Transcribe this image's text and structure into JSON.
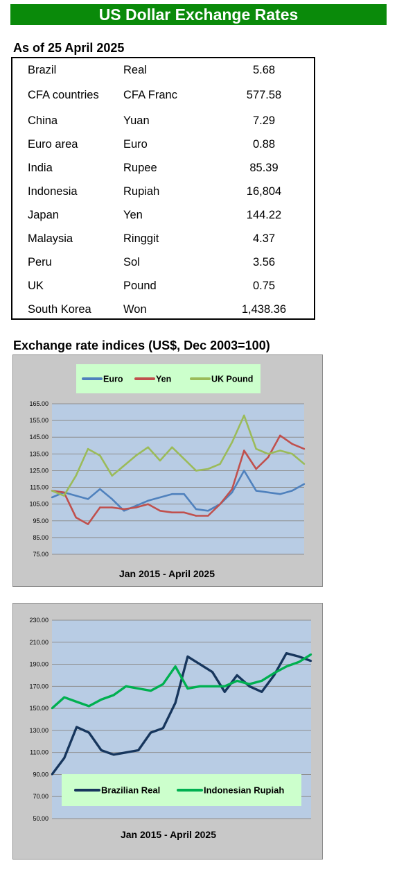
{
  "page": {
    "title": "US Dollar Exchange Rates",
    "as_of": "As of 25 April 2025",
    "indices_title": "Exchange rate indices (US$, Dec 2003=100)"
  },
  "rates": [
    {
      "country": "Brazil",
      "currency": "Real",
      "value": "5.68"
    },
    {
      "country": "CFA countries",
      "currency": "CFA Franc",
      "value": "577.58"
    },
    {
      "country": "China",
      "currency": "Yuan",
      "value": "7.29"
    },
    {
      "country": "Euro area",
      "currency": "Euro",
      "value": "0.88"
    },
    {
      "country": "India",
      "currency": "Rupee",
      "value": "85.39"
    },
    {
      "country": "Indonesia",
      "currency": "Rupiah",
      "value": "16,804"
    },
    {
      "country": "Japan",
      "currency": "Yen",
      "value": "144.22"
    },
    {
      "country": "Malaysia",
      "currency": "Ringgit",
      "value": "4.37"
    },
    {
      "country": "Peru",
      "currency": "Sol",
      "value": "3.56"
    },
    {
      "country": "UK",
      "currency": "Pound",
      "value": "0.75"
    },
    {
      "country": "South Korea",
      "currency": "Won",
      "value": "1,438.36"
    }
  ],
  "colors": {
    "banner": "#0a8a0a",
    "plot_bg": "#b8cce4",
    "legend_bg": "#ccffcc",
    "frame_bg": "#c8c8c8"
  },
  "chart_data": [
    {
      "type": "line",
      "title": "",
      "xlabel": "Jan 2015 - April 2025",
      "ylabel": "",
      "ylim": [
        75,
        165
      ],
      "yticks": [
        "75.00",
        "85.00",
        "95.00",
        "105.00",
        "115.00",
        "125.00",
        "135.00",
        "145.00",
        "155.00",
        "165.00"
      ],
      "grid": true,
      "legend": "top",
      "x": [
        "2015",
        "2015.5",
        "2016",
        "2016.5",
        "2017",
        "2017.5",
        "2018",
        "2018.5",
        "2019",
        "2019.5",
        "2020",
        "2020.5",
        "2021",
        "2021.5",
        "2022",
        "2022.5",
        "2023",
        "2023.5",
        "2024",
        "2024.5",
        "2025",
        "Apr 2025"
      ],
      "series": [
        {
          "name": "Euro",
          "color": "#4f81bd",
          "values": [
            109,
            112,
            110,
            108,
            114,
            108,
            101,
            104,
            107,
            109,
            111,
            111,
            102,
            101,
            105,
            112,
            125,
            113,
            112,
            111,
            113,
            117
          ]
        },
        {
          "name": "Yen",
          "color": "#c0504d",
          "values": [
            113,
            112,
            97,
            93,
            103,
            103,
            102,
            103,
            105,
            101,
            100,
            100,
            98,
            98,
            105,
            114,
            137,
            126,
            133,
            146,
            141,
            138
          ]
        },
        {
          "name": "UK Pound",
          "color": "#9bbb59",
          "values": [
            113,
            110,
            122,
            138,
            134,
            122,
            128,
            134,
            139,
            131,
            139,
            132,
            125,
            126,
            129,
            142,
            158,
            138,
            135,
            137,
            135,
            129
          ]
        }
      ]
    },
    {
      "type": "line",
      "title": "",
      "xlabel": "Jan 2015 -  April 2025",
      "ylabel": "",
      "ylim": [
        50,
        230
      ],
      "yticks": [
        "50.00",
        "70.00",
        "90.00",
        "110.00",
        "130.00",
        "150.00",
        "170.00",
        "190.00",
        "210.00",
        "230.00"
      ],
      "grid": true,
      "legend": "bottom",
      "x": [
        "2015",
        "2015.5",
        "2016",
        "2016.5",
        "2017",
        "2017.5",
        "2018",
        "2018.5",
        "2019",
        "2019.5",
        "2020",
        "2020.5",
        "2021",
        "2021.5",
        "2022",
        "2022.5",
        "2023",
        "2023.5",
        "2024",
        "2024.5",
        "2025",
        "Apr 2025"
      ],
      "series": [
        {
          "name": "Brazilian Real",
          "color": "#17365d",
          "values": [
            90,
            105,
            133,
            128,
            112,
            108,
            110,
            112,
            128,
            132,
            155,
            197,
            190,
            183,
            165,
            180,
            170,
            165,
            180,
            200,
            197,
            193
          ]
        },
        {
          "name": "Indonesian Rupiah",
          "color": "#00b050",
          "values": [
            150,
            160,
            156,
            152,
            158,
            162,
            170,
            168,
            166,
            172,
            188,
            168,
            170,
            170,
            170,
            175,
            172,
            175,
            182,
            188,
            192,
            199
          ]
        }
      ]
    }
  ]
}
